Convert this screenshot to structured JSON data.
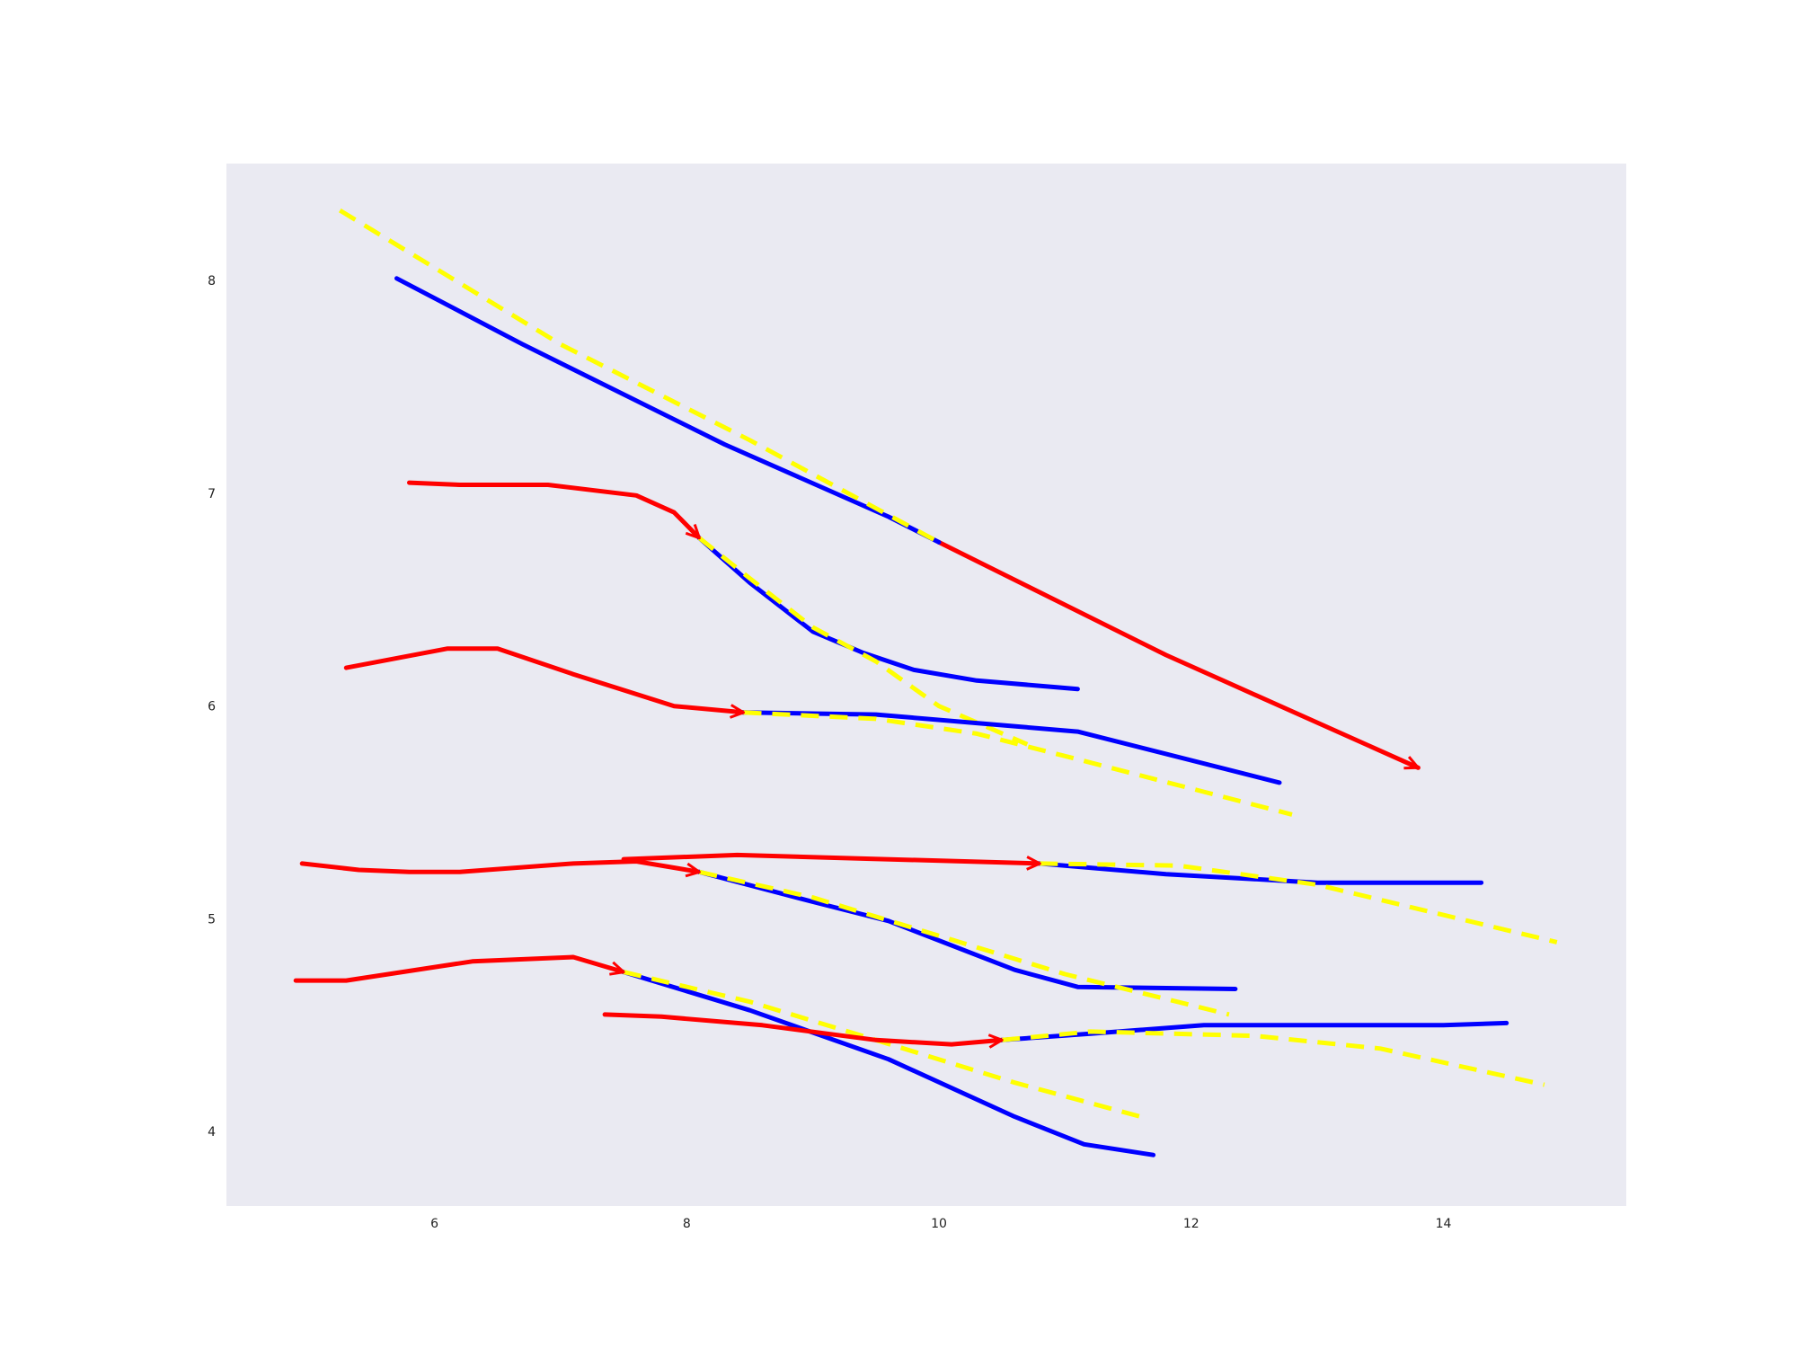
{
  "chart_data": {
    "type": "line",
    "title": "",
    "xlabel": "",
    "ylabel": "",
    "xlim": [
      4.35,
      15.45
    ],
    "ylim": [
      3.65,
      8.55
    ],
    "xticks": [
      6,
      8,
      10,
      12,
      14
    ],
    "yticks": [
      4,
      5,
      6,
      7,
      8
    ],
    "grid": false,
    "background": "#eaeaf2",
    "colors": {
      "observed": "#ff0000",
      "predicted": "#0000ff",
      "reference": "#ffff00"
    },
    "trajectories": [
      {
        "observed": [
          [
            10.0,
            6.77
          ],
          [
            11.8,
            6.24
          ],
          [
            13.8,
            5.71
          ]
        ],
        "predicted": [
          [
            5.7,
            8.01
          ],
          [
            6.7,
            7.7
          ],
          [
            8.3,
            7.23
          ],
          [
            9.6,
            6.89
          ],
          [
            10.0,
            6.77
          ]
        ],
        "reference": [
          [
            5.25,
            8.33
          ],
          [
            7.0,
            7.7
          ],
          [
            8.5,
            7.25
          ],
          [
            10.0,
            6.77
          ]
        ]
      },
      {
        "observed": [
          [
            5.8,
            7.05
          ],
          [
            6.2,
            7.04
          ],
          [
            6.9,
            7.04
          ],
          [
            7.6,
            6.99
          ],
          [
            7.9,
            6.91
          ],
          [
            8.1,
            6.79
          ]
        ],
        "predicted": [
          [
            8.1,
            6.79
          ],
          [
            8.5,
            6.58
          ],
          [
            9.0,
            6.35
          ],
          [
            9.4,
            6.25
          ],
          [
            9.8,
            6.17
          ],
          [
            10.3,
            6.12
          ],
          [
            11.1,
            6.08
          ]
        ],
        "reference": [
          [
            8.1,
            6.79
          ],
          [
            8.5,
            6.6
          ],
          [
            9.0,
            6.37
          ],
          [
            9.5,
            6.21
          ],
          [
            10.0,
            6.0
          ],
          [
            10.7,
            5.82
          ]
        ]
      },
      {
        "observed": [
          [
            5.3,
            6.18
          ],
          [
            6.1,
            6.27
          ],
          [
            6.5,
            6.27
          ],
          [
            7.1,
            6.15
          ],
          [
            7.9,
            6.0
          ],
          [
            8.45,
            5.97
          ]
        ],
        "predicted": [
          [
            8.45,
            5.97
          ],
          [
            9.5,
            5.96
          ],
          [
            10.3,
            5.92
          ],
          [
            11.1,
            5.88
          ],
          [
            12.7,
            5.64
          ]
        ],
        "reference": [
          [
            8.45,
            5.97
          ],
          [
            9.5,
            5.94
          ],
          [
            10.3,
            5.87
          ],
          [
            11.1,
            5.75
          ],
          [
            12.8,
            5.49
          ]
        ]
      },
      {
        "observed": [
          [
            7.5,
            5.28
          ],
          [
            8.4,
            5.3
          ],
          [
            10.8,
            5.26
          ]
        ],
        "predicted": [
          [
            10.8,
            5.26
          ],
          [
            11.8,
            5.21
          ],
          [
            13.0,
            5.17
          ],
          [
            14.3,
            5.17
          ]
        ],
        "reference": [
          [
            10.8,
            5.26
          ],
          [
            11.9,
            5.25
          ],
          [
            13.0,
            5.16
          ],
          [
            14.9,
            4.89
          ]
        ]
      },
      {
        "observed": [
          [
            4.95,
            5.26
          ],
          [
            5.4,
            5.23
          ],
          [
            5.8,
            5.22
          ],
          [
            6.2,
            5.22
          ],
          [
            7.1,
            5.26
          ],
          [
            7.6,
            5.27
          ],
          [
            8.1,
            5.22
          ]
        ],
        "predicted": [
          [
            8.1,
            5.22
          ],
          [
            9.0,
            5.08
          ],
          [
            9.6,
            4.99
          ],
          [
            10.6,
            4.76
          ],
          [
            11.1,
            4.68
          ],
          [
            12.35,
            4.67
          ]
        ],
        "reference": [
          [
            8.1,
            5.22
          ],
          [
            9.0,
            5.1
          ],
          [
            10.0,
            4.92
          ],
          [
            11.0,
            4.74
          ],
          [
            12.3,
            4.55
          ]
        ]
      },
      {
        "observed": [
          [
            4.9,
            4.71
          ],
          [
            5.3,
            4.71
          ],
          [
            6.3,
            4.8
          ],
          [
            7.1,
            4.82
          ],
          [
            7.5,
            4.75
          ]
        ],
        "predicted": [
          [
            7.5,
            4.75
          ],
          [
            8.5,
            4.57
          ],
          [
            9.6,
            4.34
          ],
          [
            10.6,
            4.07
          ],
          [
            11.15,
            3.94
          ],
          [
            11.7,
            3.89
          ]
        ],
        "reference": [
          [
            7.5,
            4.75
          ],
          [
            8.5,
            4.61
          ],
          [
            9.5,
            4.43
          ],
          [
            10.6,
            4.23
          ],
          [
            11.6,
            4.07
          ]
        ]
      },
      {
        "observed": [
          [
            7.35,
            4.55
          ],
          [
            7.8,
            4.54
          ],
          [
            8.6,
            4.5
          ],
          [
            9.5,
            4.43
          ],
          [
            10.1,
            4.41
          ],
          [
            10.5,
            4.43
          ]
        ],
        "predicted": [
          [
            10.5,
            4.43
          ],
          [
            11.2,
            4.46
          ],
          [
            12.1,
            4.5
          ],
          [
            13.1,
            4.5
          ],
          [
            14.0,
            4.5
          ],
          [
            14.5,
            4.51
          ]
        ],
        "reference": [
          [
            10.5,
            4.43
          ],
          [
            11.2,
            4.47
          ],
          [
            12.5,
            4.45
          ],
          [
            13.5,
            4.39
          ],
          [
            14.8,
            4.22
          ]
        ]
      }
    ]
  }
}
